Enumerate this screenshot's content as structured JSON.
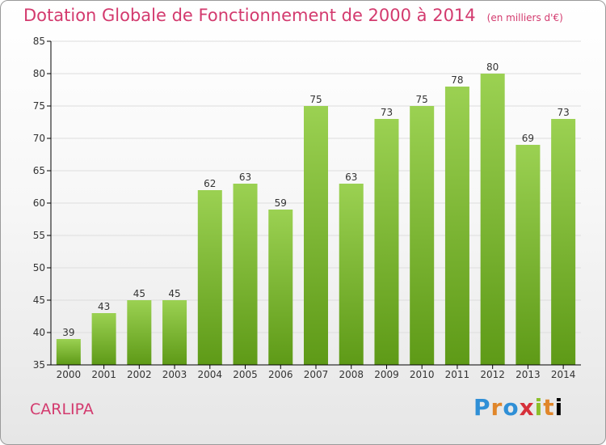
{
  "header": {
    "title": "Dotation Globale de Fonctionnement de 2000 à 2014",
    "unit": "(en milliers d'€)"
  },
  "footer": {
    "place": "CARLIPA",
    "logo_text": "Proxiti"
  },
  "colors": {
    "title": "#d33a6e",
    "bar_top": "#9bd152",
    "bar_bottom": "#5e9a17",
    "grid": "#dddddd",
    "axis": "#000000"
  },
  "chart_data": {
    "type": "bar",
    "title": "Dotation Globale de Fonctionnement de 2000 à 2014",
    "subtitle": "(en milliers d'€)",
    "xlabel": "",
    "ylabel": "",
    "categories": [
      "2000",
      "2001",
      "2002",
      "2003",
      "2004",
      "2005",
      "2006",
      "2007",
      "2008",
      "2009",
      "2010",
      "2011",
      "2012",
      "2013",
      "2014"
    ],
    "values": [
      39,
      43,
      45,
      45,
      62,
      63,
      59,
      75,
      63,
      73,
      75,
      78,
      80,
      69,
      73
    ],
    "ylim": [
      35,
      85
    ],
    "yticks": [
      35,
      40,
      45,
      50,
      55,
      60,
      65,
      70,
      75,
      80,
      85
    ],
    "grid": true,
    "data_labels": true
  }
}
